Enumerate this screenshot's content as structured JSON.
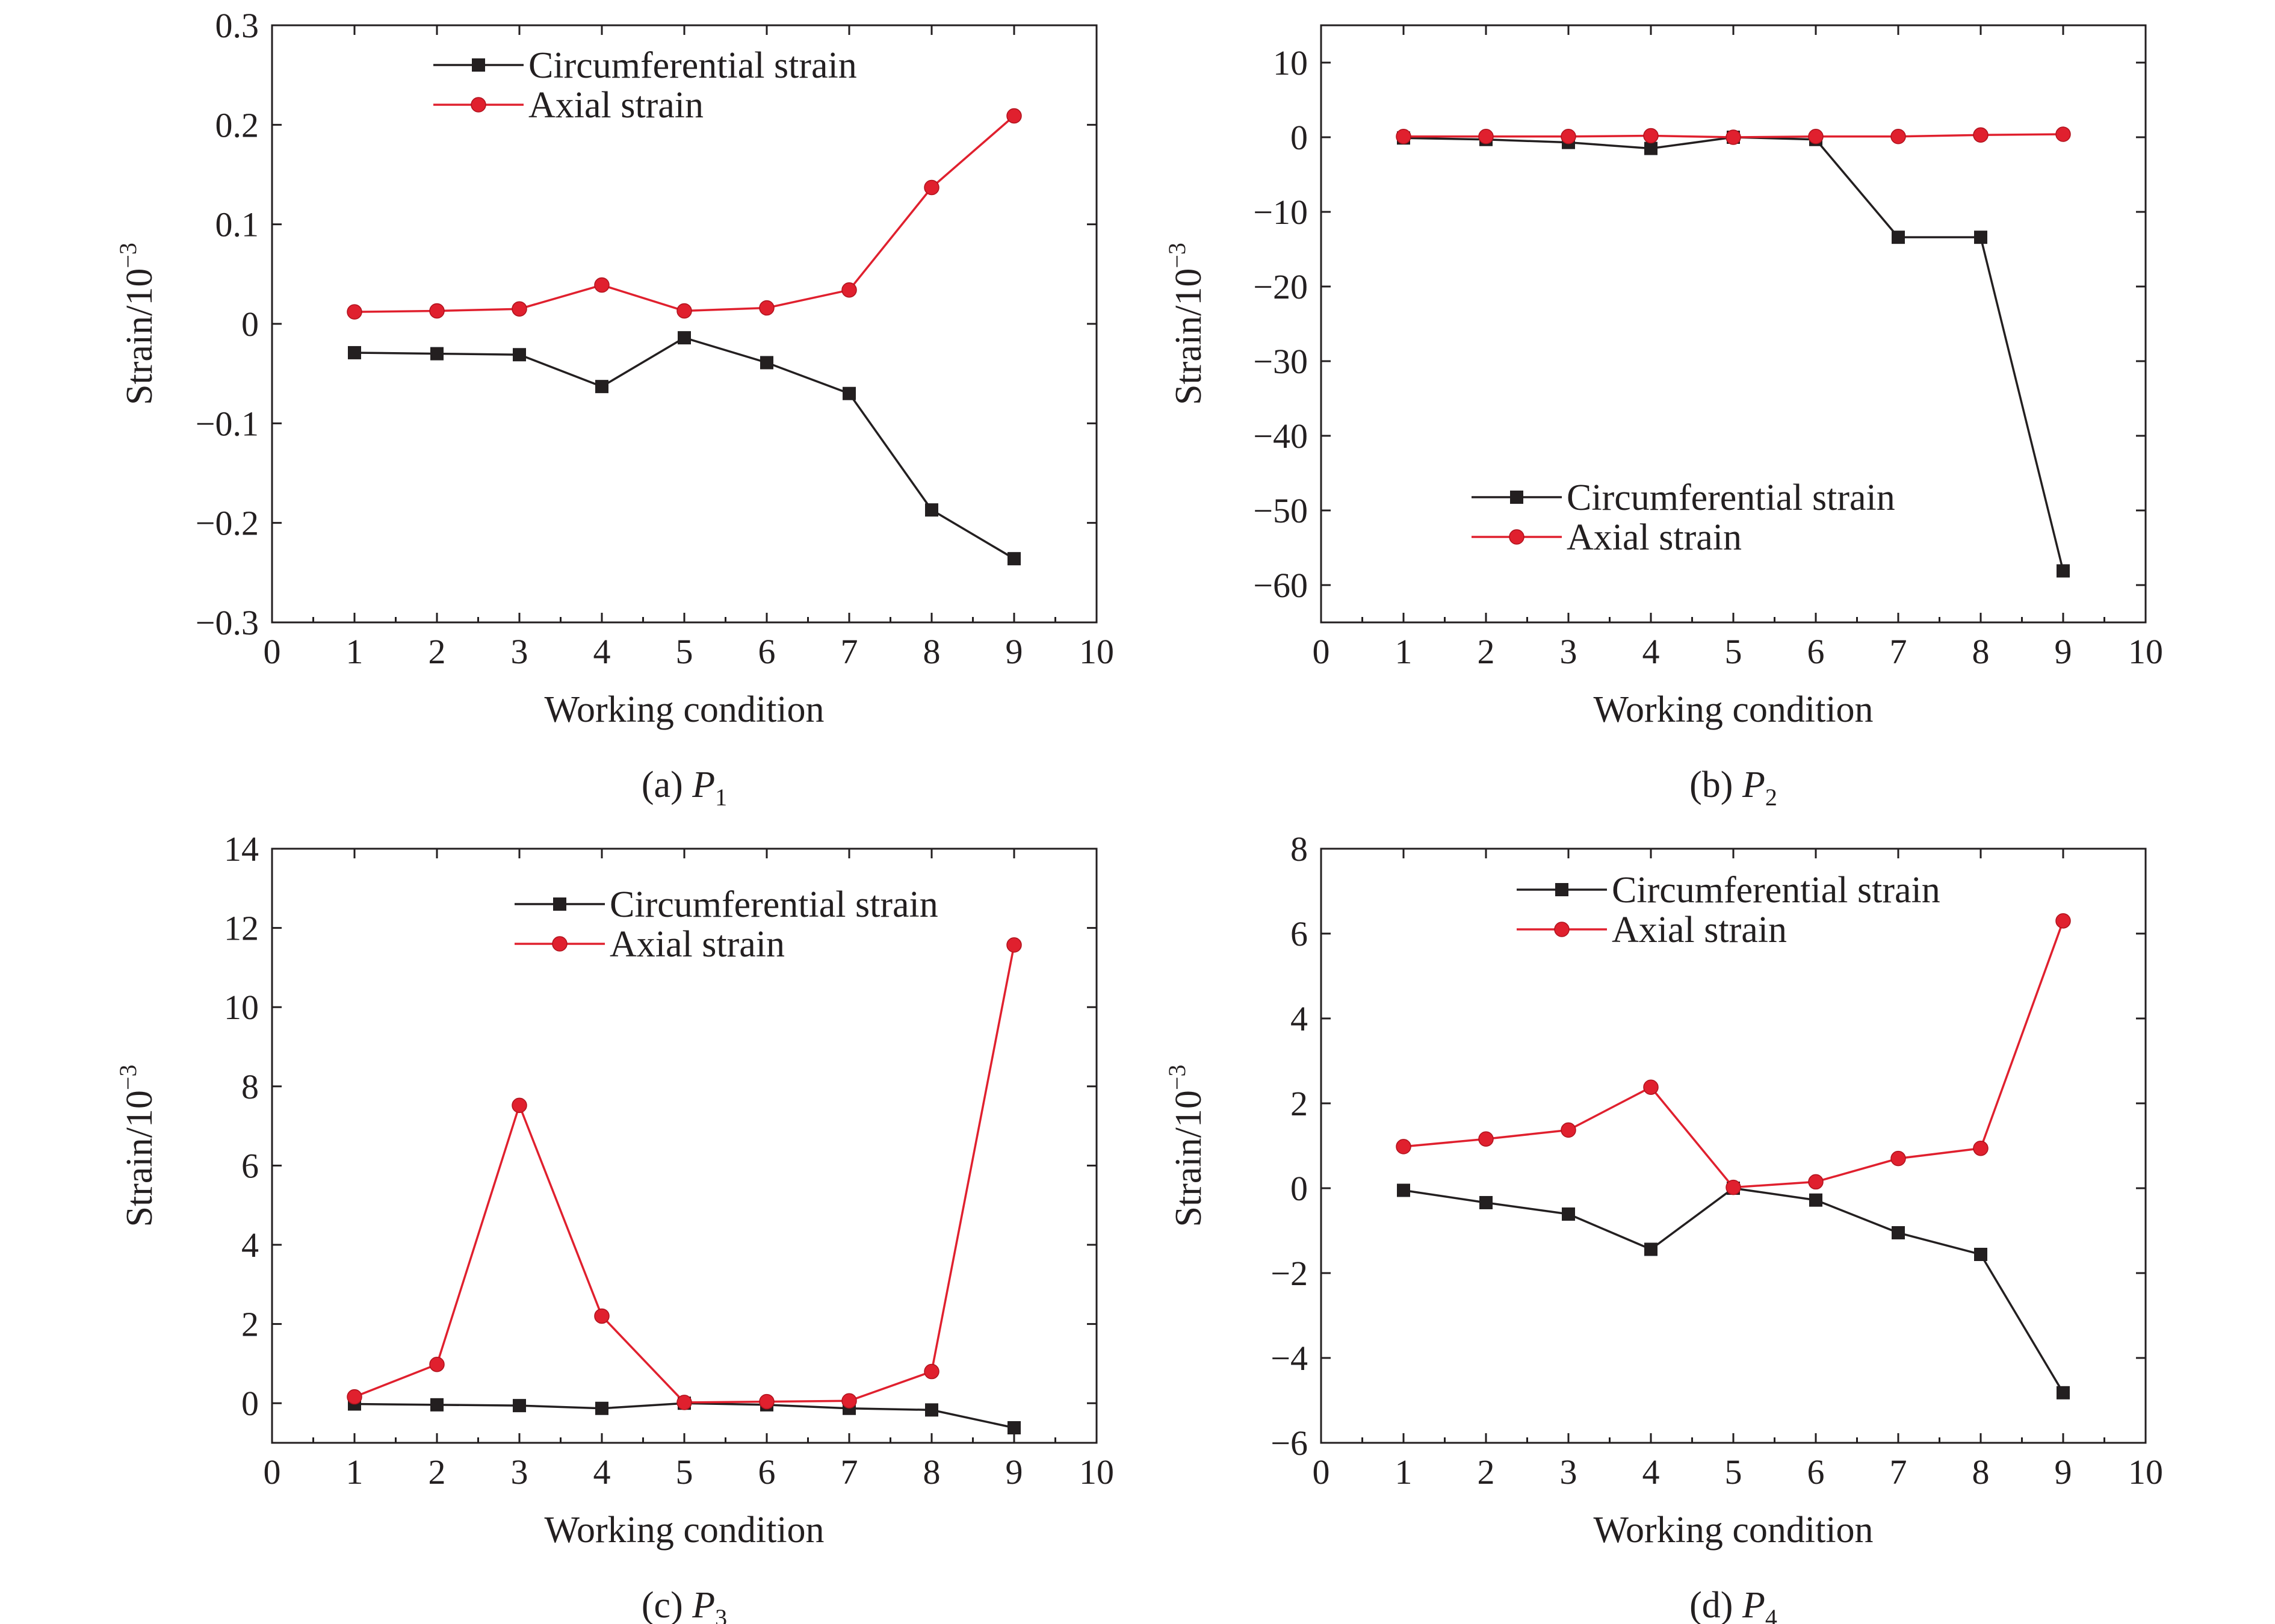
{
  "chart_data": [
    {
      "type": "line",
      "caption": "(a) P",
      "caption_sub": "1",
      "xlabel": "Working condition",
      "ylabel_base": "Strain/10",
      "ylabel_exp": "−3",
      "xlim": [
        0,
        10
      ],
      "ylim": [
        -0.3,
        0.3
      ],
      "xticks": [
        0,
        1,
        2,
        3,
        4,
        5,
        6,
        7,
        8,
        9,
        10
      ],
      "yticks": [
        -0.3,
        -0.2,
        -0.1,
        0,
        0.1,
        0.2,
        0.3
      ],
      "ytick_labels": [
        "−0.3",
        "−0.2",
        "−0.1",
        "0",
        "0.1",
        "0.2",
        "0.3"
      ],
      "legend_position": "top-left",
      "x": [
        1,
        2,
        3,
        4,
        5,
        6,
        7,
        8,
        9
      ],
      "series": [
        {
          "name": "Circumferential strain",
          "color": "#231f20",
          "marker": "square",
          "values": [
            -0.029,
            -0.03,
            -0.031,
            -0.063,
            -0.014,
            -0.039,
            -0.07,
            -0.187,
            -0.236
          ]
        },
        {
          "name": "Axial strain",
          "color": "#e0202e",
          "marker": "circle",
          "values": [
            0.012,
            0.013,
            0.015,
            0.039,
            0.013,
            0.016,
            0.034,
            0.137,
            0.209
          ]
        }
      ]
    },
    {
      "type": "line",
      "caption": "(b) P",
      "caption_sub": "2",
      "xlabel": "Working condition",
      "ylabel_base": "Strain/10",
      "ylabel_exp": "−3",
      "xlim": [
        0,
        10
      ],
      "ylim": [
        -65,
        15
      ],
      "xticks": [
        0,
        1,
        2,
        3,
        4,
        5,
        6,
        7,
        8,
        9,
        10
      ],
      "yticks": [
        -60,
        -50,
        -40,
        -30,
        -20,
        -10,
        0,
        10
      ],
      "ytick_labels": [
        "−60",
        "−50",
        "−40",
        "−30",
        "−20",
        "−10",
        "0",
        "10"
      ],
      "legend_position": "center-middle",
      "x": [
        1,
        2,
        3,
        4,
        5,
        6,
        7,
        8,
        9
      ],
      "series": [
        {
          "name": "Circumferential strain",
          "color": "#231f20",
          "marker": "square",
          "values": [
            -0.1,
            -0.3,
            -0.7,
            -1.5,
            0,
            -0.3,
            -13.4,
            -13.4,
            -58.1
          ]
        },
        {
          "name": "Axial strain",
          "color": "#e0202e",
          "marker": "circle",
          "values": [
            0.1,
            0.1,
            0.1,
            0.2,
            0.0,
            0.1,
            0.1,
            0.3,
            0.4
          ]
        }
      ]
    },
    {
      "type": "line",
      "caption": "(c) P",
      "caption_sub": "3",
      "xlabel": "Working condition",
      "ylabel_base": "Strain/10",
      "ylabel_exp": "−3",
      "xlim": [
        0,
        10
      ],
      "ylim": [
        -1,
        14
      ],
      "xticks": [
        0,
        1,
        2,
        3,
        4,
        5,
        6,
        7,
        8,
        9,
        10
      ],
      "yticks": [
        0,
        2,
        4,
        6,
        8,
        10,
        12,
        14
      ],
      "ytick_labels": [
        "0",
        "2",
        "4",
        "6",
        "8",
        "10",
        "12",
        "14"
      ],
      "legend_position": "top-center",
      "x": [
        1,
        2,
        3,
        4,
        5,
        6,
        7,
        8,
        9
      ],
      "series": [
        {
          "name": "Circumferential strain",
          "color": "#231f20",
          "marker": "square",
          "values": [
            -0.02,
            -0.04,
            -0.06,
            -0.13,
            0.0,
            -0.04,
            -0.13,
            -0.17,
            -0.62
          ]
        },
        {
          "name": "Axial strain",
          "color": "#e0202e",
          "marker": "circle",
          "values": [
            0.16,
            0.98,
            7.52,
            2.2,
            0.02,
            0.04,
            0.06,
            0.8,
            11.57
          ]
        }
      ]
    },
    {
      "type": "line",
      "caption": "(d) P",
      "caption_sub": "4",
      "xlabel": "Working condition",
      "ylabel_base": "Strain/10",
      "ylabel_exp": "−3",
      "xlim": [
        0,
        10
      ],
      "ylim": [
        -6,
        8
      ],
      "xticks": [
        0,
        1,
        2,
        3,
        4,
        5,
        6,
        7,
        8,
        9,
        10
      ],
      "yticks": [
        -6,
        -4,
        -2,
        0,
        2,
        4,
        6,
        8
      ],
      "ytick_labels": [
        "−6",
        "−4",
        "−2",
        "0",
        "2",
        "4",
        "6",
        "8"
      ],
      "legend_position": "top-center",
      "x": [
        1,
        2,
        3,
        4,
        5,
        6,
        7,
        8,
        9
      ],
      "series": [
        {
          "name": "Circumferential strain",
          "color": "#231f20",
          "marker": "square",
          "values": [
            -0.05,
            -0.34,
            -0.61,
            -1.44,
            0.0,
            -0.28,
            -1.05,
            -1.56,
            -4.82
          ]
        },
        {
          "name": "Axial strain",
          "color": "#e0202e",
          "marker": "circle",
          "values": [
            0.98,
            1.16,
            1.37,
            2.38,
            0.02,
            0.15,
            0.7,
            0.94,
            6.3
          ]
        }
      ]
    }
  ]
}
